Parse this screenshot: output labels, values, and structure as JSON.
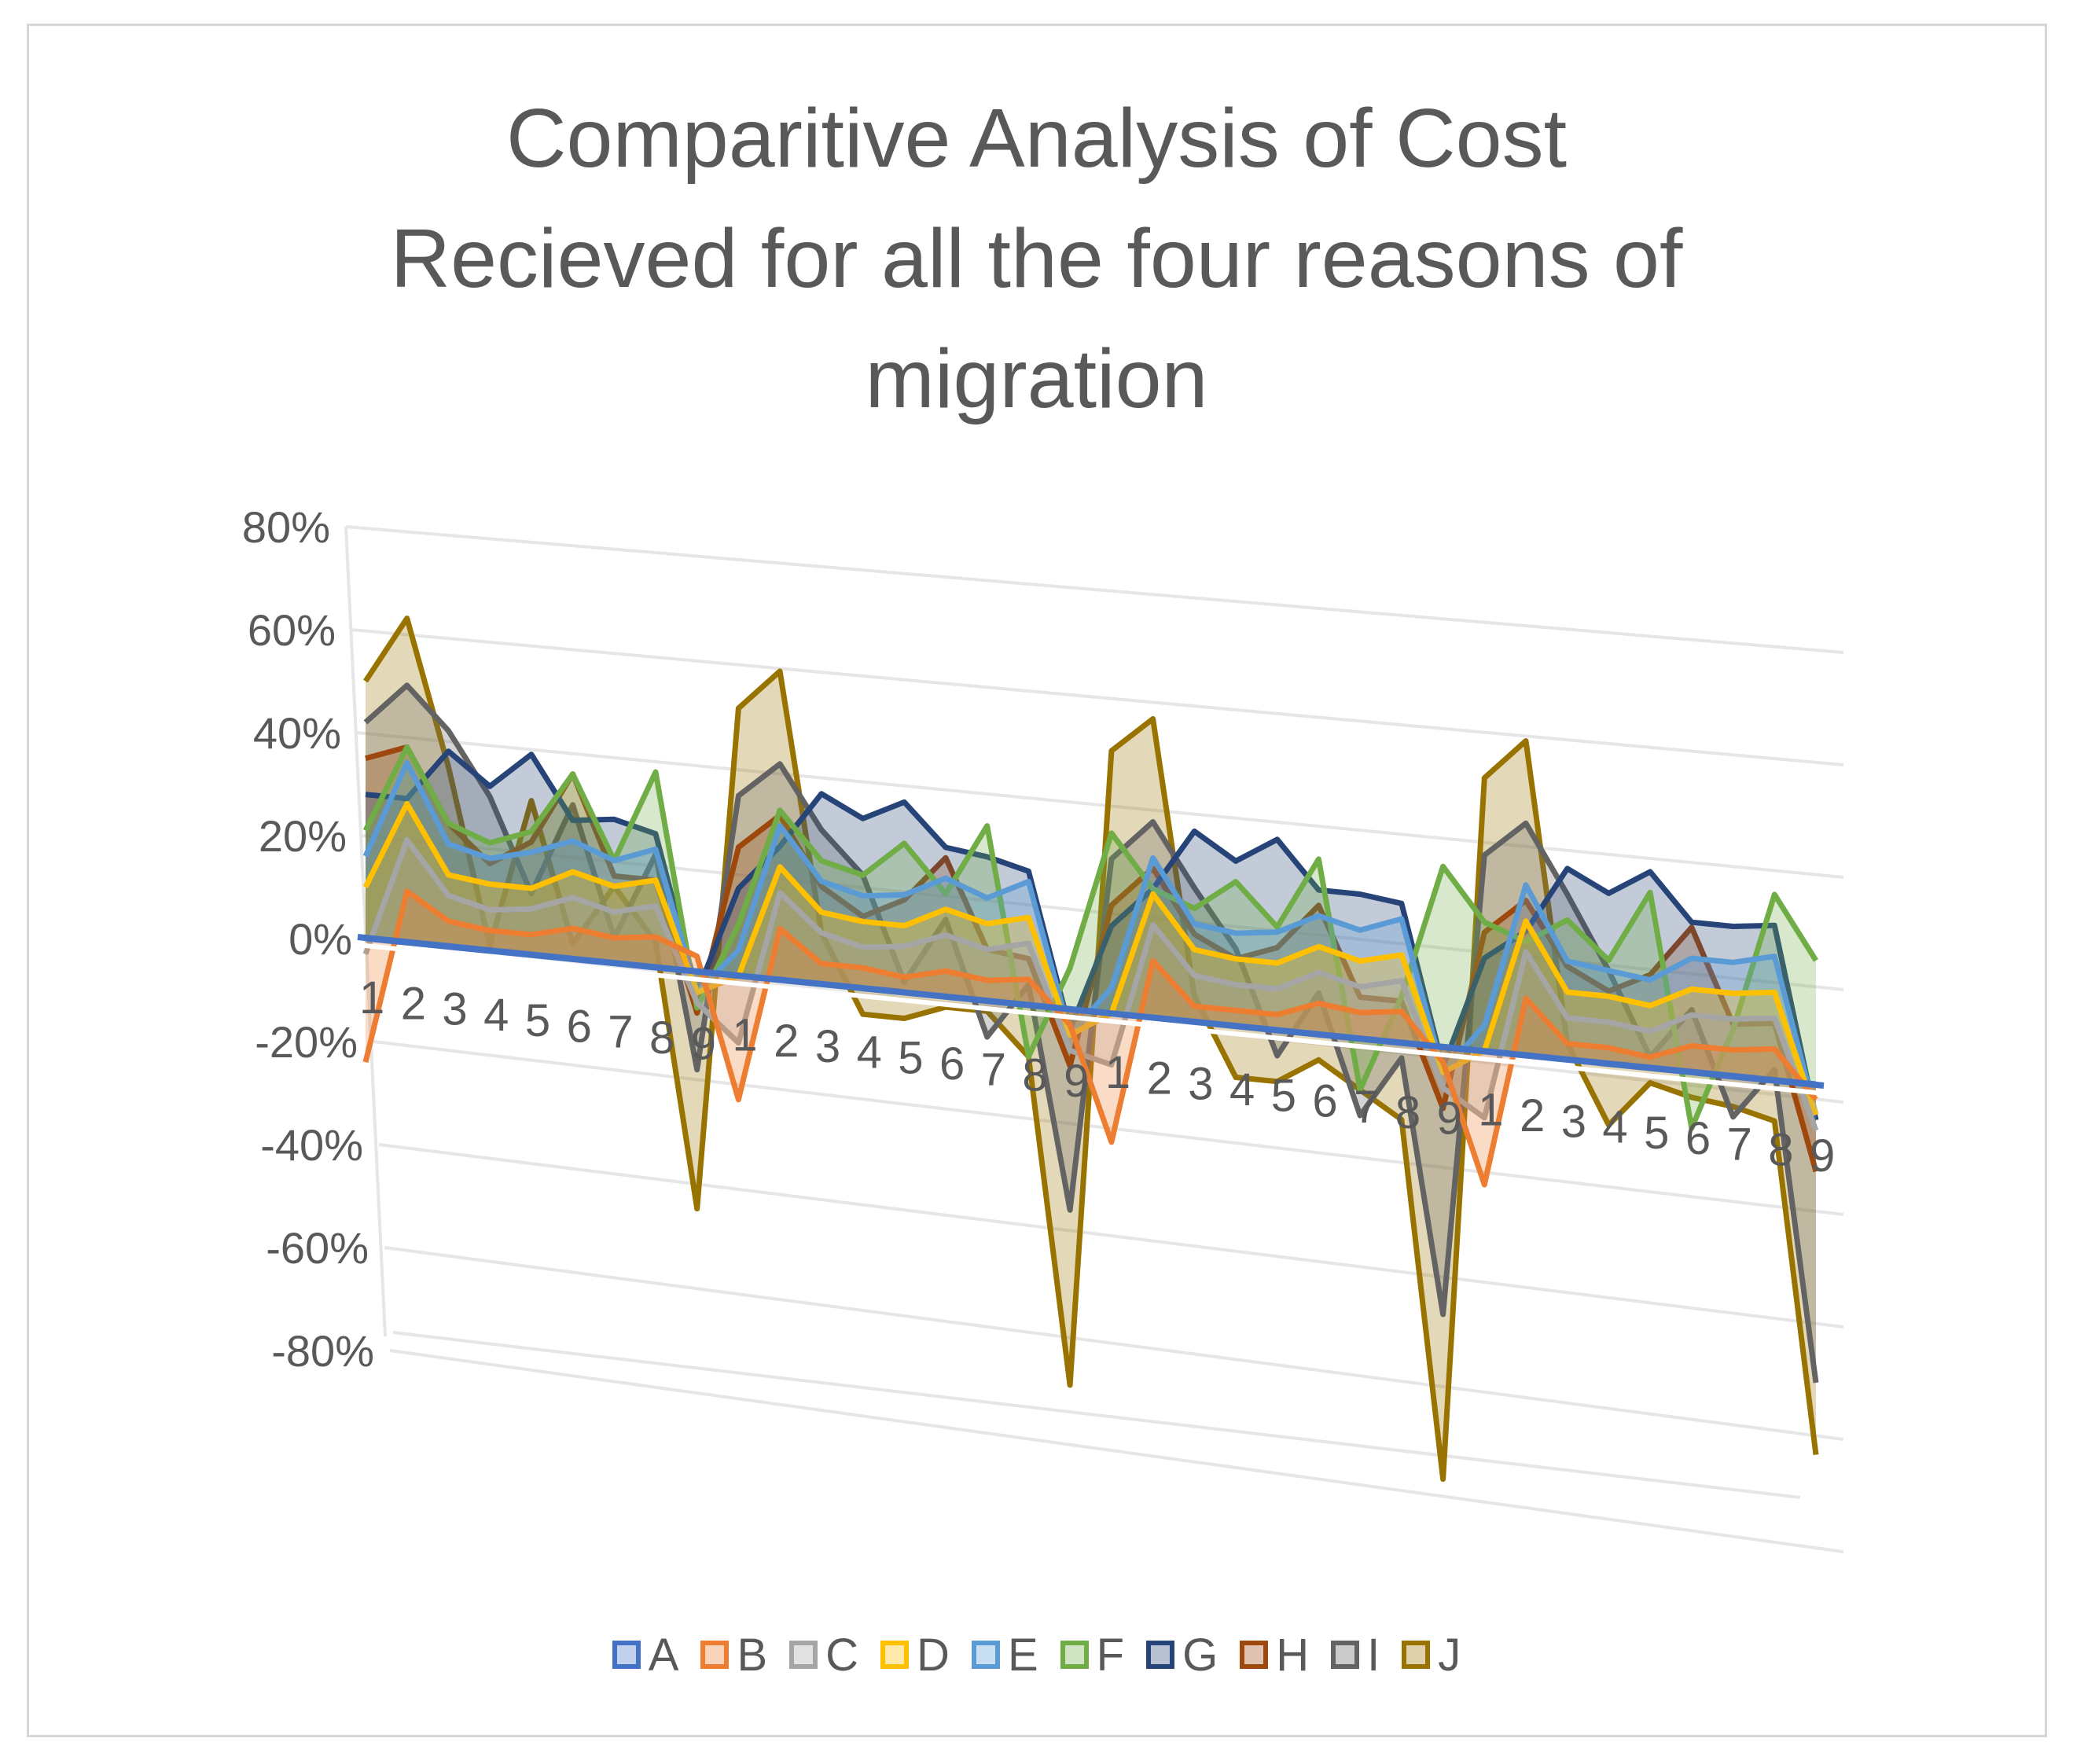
{
  "chart_data": {
    "type": "area",
    "title_lines": [
      "Comparitive Analysis of Cost",
      "Recieved for all the four reasons of",
      "migration"
    ],
    "y_ticks": [
      "80%",
      "60%",
      "40%",
      "20%",
      "0%",
      "-20%",
      "-40%",
      "-60%",
      "-80%"
    ],
    "ylim": [
      -0.8,
      0.8
    ],
    "x_labels": [
      "1",
      "2",
      "3",
      "4",
      "5",
      "6",
      "7",
      "8",
      "9",
      "1",
      "2",
      "3",
      "4",
      "5",
      "6",
      "7",
      "8",
      "9",
      "1",
      "2",
      "3",
      "4",
      "5",
      "6",
      "7",
      "8",
      "9",
      "1",
      "2",
      "3",
      "4",
      "5",
      "6",
      "7",
      "8",
      "9"
    ],
    "grid": true,
    "legend_position": "bottom",
    "series": [
      {
        "name": "A",
        "color": "#4472C4",
        "values": [
          0,
          0,
          0,
          0,
          0,
          0,
          0,
          0,
          0,
          0,
          0,
          0,
          0,
          0,
          0,
          0,
          0,
          0,
          0,
          0,
          0,
          0,
          0,
          0,
          0,
          0,
          0,
          0,
          0,
          0,
          0,
          0,
          0,
          0,
          0,
          0
        ]
      },
      {
        "name": "B",
        "color": "#ED7D31",
        "values": [
          -0.24,
          0.1,
          0.05,
          0.04,
          0.04,
          0.06,
          0.05,
          0.06,
          0.03,
          -0.24,
          0.1,
          0.04,
          0.04,
          0.03,
          0.05,
          0.04,
          0.05,
          -0.03,
          -0.25,
          0.11,
          0.03,
          0.03,
          0.03,
          0.06,
          0.05,
          0.06,
          -0.03,
          -0.26,
          0.11,
          0.03,
          0.03,
          0.02,
          0.05,
          0.05,
          0.06,
          -0.03
        ]
      },
      {
        "name": "C",
        "color": "#A5A5A5",
        "values": [
          -0.03,
          0.2,
          0.1,
          0.08,
          0.09,
          0.12,
          0.1,
          0.12,
          -0.06,
          -0.13,
          0.17,
          0.1,
          0.08,
          0.09,
          0.12,
          0.1,
          0.12,
          -0.08,
          -0.1,
          0.18,
          0.09,
          0.08,
          0.08,
          0.12,
          0.1,
          0.12,
          -0.08,
          -0.13,
          0.2,
          0.08,
          0.08,
          0.07,
          0.11,
          0.11,
          0.12,
          -0.09
        ]
      },
      {
        "name": "D",
        "color": "#FFC000",
        "values": [
          0.1,
          0.27,
          0.14,
          0.13,
          0.13,
          0.17,
          0.15,
          0.17,
          -0.04,
          0,
          0.22,
          0.14,
          0.13,
          0.13,
          0.17,
          0.15,
          0.17,
          -0.05,
          0,
          0.24,
          0.14,
          0.13,
          0.13,
          0.17,
          0.15,
          0.17,
          -0.05,
          0,
          0.26,
          0.13,
          0.13,
          0.12,
          0.16,
          0.16,
          0.17,
          -0.06
        ]
      },
      {
        "name": "E",
        "color": "#5B9BD5",
        "values": [
          0.16,
          0.35,
          0.2,
          0.18,
          0.2,
          0.23,
          0.2,
          0.23,
          -0.04,
          0.05,
          0.3,
          0.2,
          0.18,
          0.19,
          0.23,
          0.2,
          0.24,
          -0.05,
          0.05,
          0.31,
          0.19,
          0.18,
          0.19,
          0.23,
          0.21,
          0.24,
          -0.05,
          0.05,
          0.33,
          0.19,
          0.18,
          0.17,
          0.22,
          0.22,
          0.24,
          -0.06
        ]
      },
      {
        "name": "F",
        "color": "#70AD47",
        "values": [
          0.21,
          0.38,
          0.24,
          0.21,
          0.24,
          0.36,
          0.2,
          0.38,
          -0.07,
          0.1,
          0.33,
          0.24,
          0.22,
          0.29,
          0.2,
          0.34,
          -0.1,
          0.08,
          0.35,
          0.25,
          0.22,
          0.28,
          0.2,
          0.34,
          -0.1,
          0.09,
          0.35,
          0.25,
          0.22,
          0.27,
          0.2,
          0.34,
          -0.11,
          0.09,
          0.36,
          0.24
        ]
      },
      {
        "name": "G",
        "color": "#264478",
        "values": [
          0.28,
          0.28,
          0.38,
          0.32,
          0.39,
          0.27,
          0.28,
          0.26,
          -0.04,
          0.17,
          0.26,
          0.37,
          0.33,
          0.37,
          0.29,
          0.28,
          0.26,
          -0.04,
          0.17,
          0.25,
          0.37,
          0.32,
          0.37,
          0.28,
          0.28,
          0.27,
          -0.04,
          0.18,
          0.24,
          0.37,
          0.33,
          0.38,
          0.29,
          0.29,
          0.3,
          -0.07
        ]
      },
      {
        "name": "H",
        "color": "#9E480E",
        "values": [
          0.35,
          0.38,
          0.24,
          0.17,
          0.22,
          0.36,
          0.17,
          0.17,
          -0.08,
          0.25,
          0.32,
          0.19,
          0.14,
          0.18,
          0.27,
          0.1,
          0.09,
          -0.11,
          0.21,
          0.29,
          0.17,
          0.13,
          0.16,
          0.25,
          0.08,
          0.08,
          -0.12,
          0.23,
          0.3,
          0.18,
          0.14,
          0.18,
          0.28,
          0.1,
          0.11,
          -0.17
        ]
      },
      {
        "name": "I",
        "color": "#636363",
        "values": [
          0.42,
          0.5,
          0.42,
          0.3,
          0.12,
          0.3,
          0.05,
          0.22,
          -0.19,
          0.35,
          0.42,
          0.3,
          0.22,
          0.02,
          0.15,
          -0.07,
          0.04,
          -0.39,
          0.3,
          0.38,
          0.26,
          0.15,
          -0.05,
          0.08,
          -0.15,
          -0.03,
          -0.52,
          0.38,
          0.45,
          0.32,
          0.18,
          0.02,
          0.12,
          -0.08,
          0.02,
          -0.58
        ]
      },
      {
        "name": "J",
        "color": "#997300",
        "values": [
          0.5,
          0.63,
          0.35,
          0.01,
          0.3,
          0.03,
          0.15,
          0.05,
          -0.46,
          0.52,
          0.6,
          0.1,
          -0.05,
          -0.05,
          -0.02,
          -0.02,
          -0.1,
          -0.73,
          0.51,
          0.58,
          0.05,
          -0.1,
          -0.1,
          -0.05,
          -0.1,
          -0.15,
          -0.84,
          0.53,
          0.61,
          0.03,
          -0.12,
          -0.03,
          -0.05,
          -0.06,
          -0.08,
          -0.72
        ]
      }
    ]
  }
}
